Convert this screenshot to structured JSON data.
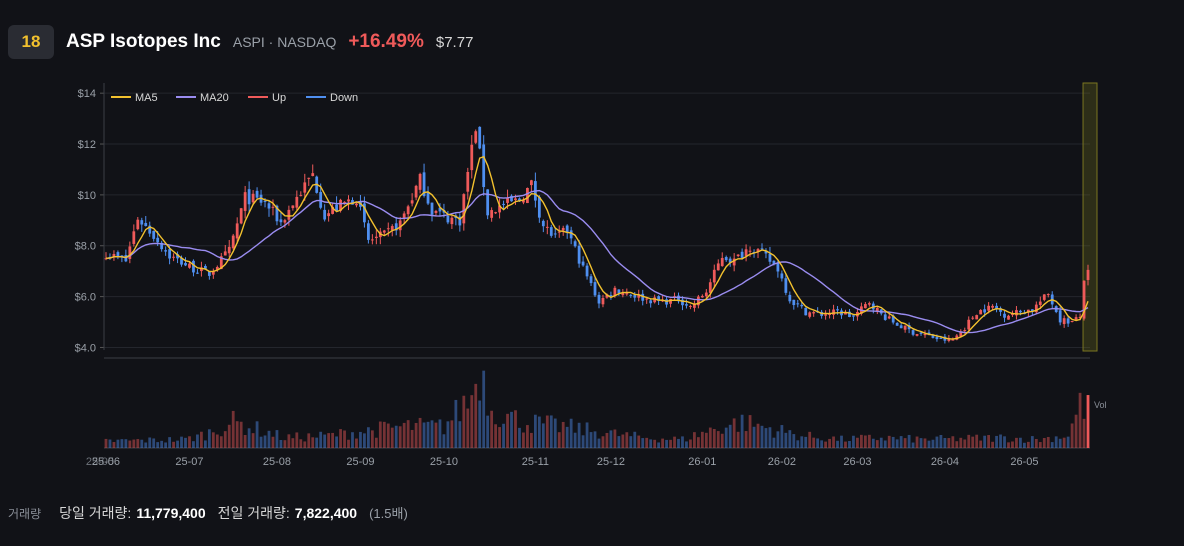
{
  "header": {
    "rank": "18",
    "name": "ASP Isotopes Inc",
    "ticker": "ASPI · NASDAQ",
    "change": "+16.49%",
    "price": "$7.77"
  },
  "footer": {
    "label": "거래량",
    "today_label": "당일 거래량:",
    "today_value": "11,779,400",
    "prev_label": "전일 거래량:",
    "prev_value": "7,822,400",
    "ratio": "(1.5배)"
  },
  "colors": {
    "up": "#ef5a5a",
    "down": "#4f8ff0",
    "ma5": "#f2c12e",
    "ma20": "#9a8cf0",
    "highlight": "#6b6a1e"
  },
  "chart_data": {
    "type": "candlestick",
    "y_unit": "$",
    "ylim": [
      3.9,
      14.4
    ],
    "y_ticks": [
      {
        "value": 14,
        "label": "$14"
      },
      {
        "value": 12,
        "label": "$12"
      },
      {
        "value": 10,
        "label": "$10"
      },
      {
        "value": 8,
        "label": "$8.0"
      },
      {
        "value": 6,
        "label": "$6.0"
      },
      {
        "value": 4,
        "label": "$4.0"
      }
    ],
    "x_ticks": [
      {
        "day": 0,
        "label": "25-06"
      },
      {
        "day": 21,
        "label": "25-07"
      },
      {
        "day": 43,
        "label": "25-08"
      },
      {
        "day": 64,
        "label": "25-09"
      },
      {
        "day": 85,
        "label": "25-10"
      },
      {
        "day": 108,
        "label": "25-11"
      },
      {
        "day": 127,
        "label": "25-12"
      },
      {
        "day": 150,
        "label": "26-01"
      },
      {
        "day": 170,
        "label": "26-02"
      },
      {
        "day": 189,
        "label": "26-03"
      },
      {
        "day": 211,
        "label": "26-04"
      },
      {
        "day": 231,
        "label": "26-05"
      }
    ],
    "x_overlap_label": "25-05",
    "legend": [
      {
        "name": "MA5",
        "key": "ma5"
      },
      {
        "name": "MA20",
        "key": "ma20"
      },
      {
        "name": "Up",
        "key": "up"
      },
      {
        "name": "Down",
        "key": "down"
      }
    ],
    "volume_label": "Vol",
    "highlight_last": 1,
    "anchors": [
      [
        0,
        7.7
      ],
      [
        5,
        7.4
      ],
      [
        8,
        9.1
      ],
      [
        12,
        8.4
      ],
      [
        16,
        7.6
      ],
      [
        22,
        7.1
      ],
      [
        26,
        6.9
      ],
      [
        31,
        7.8
      ],
      [
        35,
        9.9
      ],
      [
        40,
        9.7
      ],
      [
        44,
        8.9
      ],
      [
        48,
        9.9
      ],
      [
        52,
        10.8
      ],
      [
        55,
        9.2
      ],
      [
        59,
        9.6
      ],
      [
        63,
        9.9
      ],
      [
        66,
        8.2
      ],
      [
        70,
        8.4
      ],
      [
        74,
        8.9
      ],
      [
        79,
        10.6
      ],
      [
        82,
        9.4
      ],
      [
        86,
        9.1
      ],
      [
        89,
        9.0
      ],
      [
        91,
        10.9
      ],
      [
        93,
        12.7
      ],
      [
        96,
        9.3
      ],
      [
        100,
        9.6
      ],
      [
        104,
        9.8
      ],
      [
        107,
        10.4
      ],
      [
        110,
        8.8
      ],
      [
        113,
        8.3
      ],
      [
        116,
        8.6
      ],
      [
        120,
        7.1
      ],
      [
        124,
        5.8
      ],
      [
        128,
        6.3
      ],
      [
        132,
        6.1
      ],
      [
        136,
        5.9
      ],
      [
        140,
        5.8
      ],
      [
        144,
        5.9
      ],
      [
        147,
        5.6
      ],
      [
        151,
        6.2
      ],
      [
        155,
        7.6
      ],
      [
        158,
        7.4
      ],
      [
        162,
        8.0
      ],
      [
        165,
        7.7
      ],
      [
        169,
        7.1
      ],
      [
        172,
        5.9
      ],
      [
        176,
        5.4
      ],
      [
        180,
        5.3
      ],
      [
        184,
        5.4
      ],
      [
        188,
        5.2
      ],
      [
        192,
        5.8
      ],
      [
        195,
        5.3
      ],
      [
        199,
        4.9
      ],
      [
        203,
        4.6
      ],
      [
        206,
        4.5
      ],
      [
        210,
        4.3
      ],
      [
        213,
        4.3
      ],
      [
        216,
        4.8
      ],
      [
        219,
        5.4
      ],
      [
        223,
        5.6
      ],
      [
        226,
        5.3
      ],
      [
        230,
        5.4
      ],
      [
        233,
        5.5
      ],
      [
        237,
        6.1
      ],
      [
        240,
        5.1
      ],
      [
        243,
        5.0
      ],
      [
        245,
        5.2
      ],
      [
        246,
        6.7
      ],
      [
        247,
        6.9
      ]
    ],
    "volume_anchors": [
      [
        0,
        0.08
      ],
      [
        10,
        0.09
      ],
      [
        20,
        0.1
      ],
      [
        25,
        0.16
      ],
      [
        32,
        0.3
      ],
      [
        38,
        0.22
      ],
      [
        45,
        0.12
      ],
      [
        55,
        0.14
      ],
      [
        62,
        0.18
      ],
      [
        75,
        0.25
      ],
      [
        85,
        0.25
      ],
      [
        92,
        0.6
      ],
      [
        94,
        0.95
      ],
      [
        97,
        0.45
      ],
      [
        105,
        0.3
      ],
      [
        115,
        0.25
      ],
      [
        125,
        0.18
      ],
      [
        135,
        0.12
      ],
      [
        145,
        0.1
      ],
      [
        155,
        0.25
      ],
      [
        160,
        0.3
      ],
      [
        165,
        0.25
      ],
      [
        175,
        0.14
      ],
      [
        185,
        0.1
      ],
      [
        195,
        0.12
      ],
      [
        205,
        0.1
      ],
      [
        215,
        0.11
      ],
      [
        225,
        0.12
      ],
      [
        235,
        0.1
      ],
      [
        242,
        0.15
      ],
      [
        245,
        0.5
      ],
      [
        247,
        0.45
      ]
    ]
  }
}
